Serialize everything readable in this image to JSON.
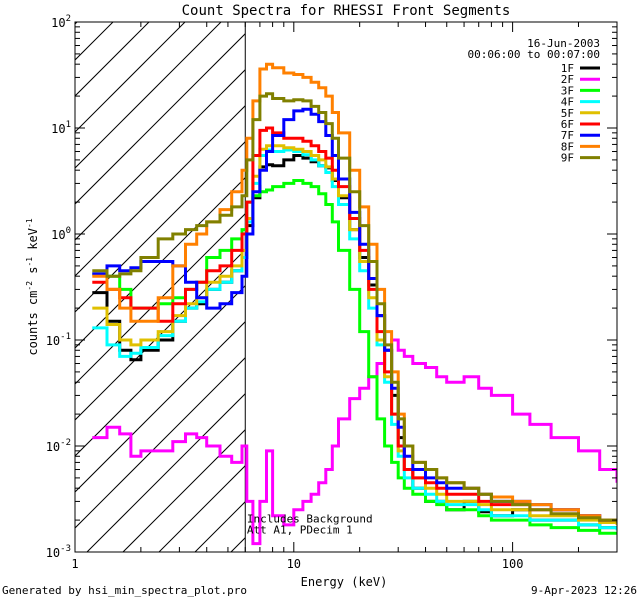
{
  "chart_data": {
    "type": "line",
    "title": "Count Spectra for RHESSI Front Segments",
    "xlabel": "Energy (keV)",
    "ylabel_parts": [
      "counts cm",
      "-2",
      " s",
      "-1",
      " keV",
      "-1"
    ],
    "xscale": "log",
    "yscale": "log",
    "xlim": [
      1,
      300
    ],
    "ylim": [
      0.001,
      100
    ],
    "x_ticks": [
      {
        "v": 1,
        "label": "1"
      },
      {
        "v": 10,
        "label": "10"
      },
      {
        "v": 100,
        "label": "100"
      }
    ],
    "y_ticks": [
      {
        "exp": -3,
        "label_base": "10",
        "label_exp": "-3"
      },
      {
        "exp": -2,
        "label_base": "10",
        "label_exp": "-2"
      },
      {
        "exp": -1,
        "label_base": "10",
        "label_exp": "-1"
      },
      {
        "exp": 0,
        "label_base": "10",
        "label_exp": "0"
      },
      {
        "exp": 1,
        "label_base": "10",
        "label_exp": "1"
      },
      {
        "exp": 2,
        "label_base": "10",
        "label_exp": "2"
      }
    ],
    "hatched_below_energy": 6,
    "date": "16-Jun-2003",
    "time_range": "00:06:00 to 00:07:00",
    "annotation_lines": [
      "Includes Background",
      "Att A1, PDecim 1"
    ],
    "annotation_anchor": {
      "x": 6.1,
      "y": 0.0019
    },
    "series": [
      {
        "name": "1F",
        "color": "#000000",
        "x": [
          1.2,
          1.4,
          1.6,
          1.8,
          2.0,
          2.4,
          2.8,
          3.2,
          3.6,
          4.0,
          4.6,
          5.2,
          5.8,
          6.1,
          6.5,
          7.0,
          7.5,
          8,
          9,
          10,
          11,
          12,
          13,
          14,
          15,
          16,
          18,
          20,
          22,
          24,
          26,
          28,
          30,
          32,
          35,
          40,
          45,
          50,
          60,
          70,
          80,
          100,
          120,
          150,
          200,
          250,
          300
        ],
        "y": [
          0.28,
          0.15,
          0.08,
          0.065,
          0.08,
          0.1,
          0.15,
          0.2,
          0.22,
          0.3,
          0.35,
          0.45,
          0.6,
          1.2,
          2.2,
          4.3,
          4.5,
          4.4,
          5.0,
          5.5,
          5.2,
          4.8,
          4.4,
          4.2,
          3.2,
          2.2,
          1.1,
          0.6,
          0.33,
          0.17,
          0.08,
          0.03,
          0.012,
          0.006,
          0.004,
          0.003,
          0.003,
          0.0025,
          0.003,
          0.0024,
          0.0022,
          0.0025,
          0.002,
          0.002,
          0.0018,
          0.0017,
          0.0017
        ]
      },
      {
        "name": "2F",
        "color": "#ff00ff",
        "x": [
          1.2,
          1.4,
          1.6,
          1.8,
          2.0,
          2.4,
          2.8,
          3.2,
          3.6,
          4.0,
          4.6,
          5.2,
          5.8,
          6.1,
          6.5,
          7.0,
          7.5,
          8,
          9,
          10,
          11,
          12,
          13,
          14,
          15,
          16,
          18,
          20,
          22,
          24,
          26,
          28,
          30,
          32,
          35,
          40,
          45,
          50,
          60,
          70,
          80,
          100,
          120,
          150,
          200,
          250,
          300
        ],
        "y": [
          0.012,
          0.015,
          0.013,
          0.008,
          0.009,
          0.009,
          0.011,
          0.013,
          0.012,
          0.01,
          0.008,
          0.007,
          0.01,
          0.003,
          0.0012,
          0.003,
          0.009,
          0.0022,
          0.0018,
          0.0025,
          0.003,
          0.0035,
          0.0045,
          0.006,
          0.01,
          0.018,
          0.028,
          0.035,
          0.045,
          0.06,
          0.08,
          0.1,
          0.08,
          0.07,
          0.06,
          0.055,
          0.045,
          0.04,
          0.045,
          0.035,
          0.03,
          0.02,
          0.016,
          0.012,
          0.009,
          0.006,
          0.0045
        ]
      },
      {
        "name": "3F",
        "color": "#00ff00",
        "x": [
          1.2,
          1.4,
          1.6,
          1.8,
          2.0,
          2.4,
          2.8,
          3.2,
          3.6,
          4.0,
          4.6,
          5.2,
          5.8,
          6.1,
          6.5,
          7.0,
          7.5,
          8,
          9,
          10,
          11,
          12,
          13,
          14,
          15,
          16,
          18,
          20,
          22,
          24,
          26,
          28,
          30,
          32,
          35,
          40,
          45,
          50,
          60,
          70,
          80,
          100,
          120,
          150,
          200,
          250,
          300
        ],
        "y": [
          0.42,
          0.4,
          0.3,
          0.2,
          0.2,
          0.22,
          0.25,
          0.3,
          0.35,
          0.6,
          0.7,
          0.9,
          1.1,
          2.0,
          2.3,
          2.5,
          2.6,
          2.8,
          3.0,
          3.2,
          3.0,
          2.8,
          2.4,
          1.9,
          1.3,
          0.7,
          0.3,
          0.12,
          0.045,
          0.018,
          0.01,
          0.007,
          0.005,
          0.004,
          0.0035,
          0.003,
          0.0028,
          0.0025,
          0.0025,
          0.0022,
          0.002,
          0.002,
          0.0018,
          0.0017,
          0.0016,
          0.0015,
          0.0015
        ]
      },
      {
        "name": "4F",
        "color": "#00ffff",
        "x": [
          1.2,
          1.4,
          1.6,
          1.8,
          2.0,
          2.4,
          2.8,
          3.2,
          3.6,
          4.0,
          4.6,
          5.2,
          5.8,
          6.1,
          6.5,
          7.0,
          7.5,
          8,
          9,
          10,
          11,
          12,
          13,
          14,
          15,
          16,
          18,
          20,
          22,
          24,
          26,
          28,
          30,
          32,
          35,
          40,
          45,
          50,
          60,
          70,
          80,
          100,
          120,
          150,
          200,
          250,
          300
        ],
        "y": [
          0.13,
          0.09,
          0.07,
          0.075,
          0.085,
          0.11,
          0.15,
          0.2,
          0.23,
          0.3,
          0.35,
          0.45,
          0.6,
          1.3,
          3.0,
          5.5,
          6.2,
          6.0,
          6.2,
          6.0,
          5.6,
          5.0,
          4.4,
          3.8,
          2.8,
          1.9,
          0.9,
          0.45,
          0.2,
          0.09,
          0.04,
          0.016,
          0.008,
          0.005,
          0.004,
          0.0035,
          0.003,
          0.0028,
          0.0028,
          0.0025,
          0.0022,
          0.0022,
          0.002,
          0.002,
          0.0018,
          0.0017,
          0.0016
        ]
      },
      {
        "name": "5F",
        "color": "#e0c000",
        "x": [
          1.2,
          1.4,
          1.6,
          1.8,
          2.0,
          2.4,
          2.8,
          3.2,
          3.6,
          4.0,
          4.6,
          5.2,
          5.8,
          6.1,
          6.5,
          7.0,
          7.5,
          8,
          9,
          10,
          11,
          12,
          13,
          14,
          15,
          16,
          18,
          20,
          22,
          24,
          26,
          28,
          30,
          32,
          35,
          40,
          45,
          50,
          60,
          70,
          80,
          100,
          120,
          150,
          200,
          250,
          300
        ],
        "y": [
          0.2,
          0.14,
          0.1,
          0.09,
          0.1,
          0.12,
          0.17,
          0.22,
          0.25,
          0.35,
          0.4,
          0.5,
          0.7,
          1.4,
          3.5,
          6.3,
          6.8,
          6.8,
          6.5,
          6.3,
          6.0,
          5.5,
          5.0,
          4.3,
          3.3,
          2.3,
          1.1,
          0.55,
          0.25,
          0.1,
          0.045,
          0.02,
          0.009,
          0.006,
          0.005,
          0.004,
          0.0035,
          0.003,
          0.003,
          0.0028,
          0.0025,
          0.0025,
          0.0022,
          0.0022,
          0.002,
          0.0019,
          0.0018
        ]
      },
      {
        "name": "6F",
        "color": "#ff0000",
        "x": [
          1.2,
          1.4,
          1.6,
          1.8,
          2.0,
          2.4,
          2.8,
          3.2,
          3.6,
          4.0,
          4.6,
          5.2,
          5.8,
          6.1,
          6.5,
          7.0,
          7.5,
          8,
          9,
          10,
          11,
          12,
          13,
          14,
          15,
          16,
          18,
          20,
          22,
          24,
          26,
          28,
          30,
          32,
          35,
          40,
          45,
          50,
          60,
          70,
          80,
          100,
          120,
          150,
          200,
          250,
          300
        ],
        "y": [
          0.35,
          0.3,
          0.25,
          0.2,
          0.2,
          0.15,
          0.22,
          0.3,
          0.35,
          0.45,
          0.5,
          0.7,
          1.0,
          2.0,
          5.5,
          9.5,
          10.0,
          9.0,
          8.0,
          8.0,
          7.5,
          6.8,
          6.0,
          5.2,
          4.0,
          2.8,
          1.4,
          0.7,
          0.3,
          0.12,
          0.05,
          0.02,
          0.01,
          0.006,
          0.005,
          0.0045,
          0.004,
          0.0035,
          0.0035,
          0.003,
          0.0028,
          0.0028,
          0.0025,
          0.0025,
          0.0022,
          0.002,
          0.002
        ]
      },
      {
        "name": "7F",
        "color": "#0000ff",
        "x": [
          1.2,
          1.4,
          1.6,
          1.8,
          2.0,
          2.4,
          2.8,
          3.2,
          3.6,
          4.0,
          4.6,
          5.2,
          5.8,
          6.1,
          6.5,
          7.0,
          7.5,
          8,
          9,
          10,
          11,
          12,
          13,
          14,
          15,
          16,
          18,
          20,
          22,
          24,
          26,
          28,
          30,
          32,
          35,
          40,
          45,
          50,
          60,
          70,
          80,
          100,
          120,
          150,
          200,
          250,
          300
        ],
        "y": [
          0.42,
          0.5,
          0.45,
          0.48,
          0.55,
          0.55,
          0.5,
          0.35,
          0.25,
          0.2,
          0.22,
          0.28,
          0.4,
          1.0,
          2.5,
          4.0,
          6.0,
          8.5,
          12.0,
          14.5,
          15.0,
          13.5,
          11.5,
          8.5,
          5.5,
          3.3,
          1.6,
          0.8,
          0.38,
          0.17,
          0.08,
          0.035,
          0.015,
          0.008,
          0.006,
          0.005,
          0.0045,
          0.004,
          0.004,
          0.0035,
          0.003,
          0.003,
          0.0028,
          0.0025,
          0.0022,
          0.002,
          0.002
        ]
      },
      {
        "name": "8F",
        "color": "#ff8000",
        "x": [
          1.2,
          1.4,
          1.6,
          1.8,
          2.0,
          2.4,
          2.8,
          3.2,
          3.6,
          4.0,
          4.6,
          5.2,
          5.8,
          6.1,
          6.5,
          7.0,
          7.5,
          8,
          9,
          10,
          11,
          12,
          13,
          14,
          15,
          16,
          18,
          20,
          22,
          24,
          26,
          28,
          30,
          32,
          35,
          40,
          45,
          50,
          60,
          70,
          80,
          100,
          120,
          150,
          200,
          250,
          300
        ],
        "y": [
          0.4,
          0.3,
          0.2,
          0.15,
          0.15,
          0.25,
          0.5,
          0.8,
          1.0,
          1.3,
          1.7,
          2.5,
          4.0,
          8.0,
          18.0,
          36.0,
          40.0,
          37.0,
          33.0,
          32.0,
          30.0,
          27.0,
          24.0,
          20.0,
          14.0,
          9.0,
          4.0,
          1.8,
          0.8,
          0.3,
          0.12,
          0.05,
          0.02,
          0.01,
          0.007,
          0.006,
          0.005,
          0.0045,
          0.004,
          0.0035,
          0.0033,
          0.003,
          0.0028,
          0.0025,
          0.0022,
          0.002,
          0.002
        ]
      },
      {
        "name": "9F",
        "color": "#808000",
        "x": [
          1.2,
          1.4,
          1.6,
          1.8,
          2.0,
          2.4,
          2.8,
          3.2,
          3.6,
          4.0,
          4.6,
          5.2,
          5.8,
          6.1,
          6.5,
          7.0,
          7.5,
          8,
          9,
          10,
          11,
          12,
          13,
          14,
          15,
          16,
          18,
          20,
          22,
          24,
          26,
          28,
          30,
          32,
          35,
          40,
          45,
          50,
          60,
          70,
          80,
          100,
          120,
          150,
          200,
          250,
          300
        ],
        "y": [
          0.45,
          0.4,
          0.42,
          0.45,
          0.6,
          0.9,
          1.0,
          1.1,
          1.2,
          1.3,
          1.5,
          1.8,
          2.3,
          5.0,
          12.0,
          20.0,
          21.0,
          19.0,
          18.0,
          18.5,
          18.0,
          16.0,
          14.0,
          11.0,
          8.0,
          5.2,
          2.5,
          1.2,
          0.55,
          0.22,
          0.09,
          0.04,
          0.018,
          0.01,
          0.007,
          0.006,
          0.005,
          0.0045,
          0.004,
          0.0035,
          0.003,
          0.0028,
          0.0025,
          0.0023,
          0.0021,
          0.002,
          0.0019
        ]
      }
    ]
  },
  "footer": {
    "generated_by": "Generated by hsi_min_spectra_plot.pro",
    "timestamp": "9-Apr-2023 12:26"
  }
}
